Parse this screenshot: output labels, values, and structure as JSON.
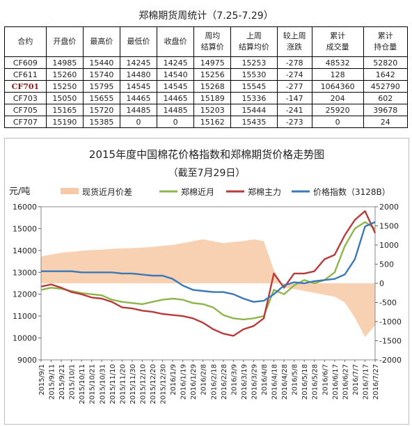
{
  "table": {
    "title": "郑棉期货周统计（7.25-7.29）",
    "headers": [
      [
        "合约"
      ],
      [
        "开盘价"
      ],
      [
        "最高价"
      ],
      [
        "最低价"
      ],
      [
        "收盘价"
      ],
      [
        "周均",
        "结算价"
      ],
      [
        "上周",
        "结算均价"
      ],
      [
        "较上周",
        "涨跌"
      ],
      [
        "累计",
        "成交量"
      ],
      [
        "累计",
        "持仓量"
      ]
    ],
    "rows": [
      {
        "contract": "CF609",
        "open": "14985",
        "high": "15440",
        "low": "14245",
        "close": "14245",
        "settle": "14975",
        "prev_settle": "15253",
        "change": "-278",
        "volume": "48532",
        "oi": "52820"
      },
      {
        "contract": "CF611",
        "open": "15260",
        "high": "15740",
        "low": "14480",
        "close": "14540",
        "settle": "15256",
        "prev_settle": "15530",
        "change": "-274",
        "volume": "128",
        "oi": "1642"
      },
      {
        "contract": "CF701",
        "open": "15250",
        "high": "15795",
        "low": "14545",
        "close": "14545",
        "settle": "15268",
        "prev_settle": "15545",
        "change": "-277",
        "volume": "1064360",
        "oi": "452790",
        "highlight": true
      },
      {
        "contract": "CF703",
        "open": "15050",
        "high": "15655",
        "low": "14465",
        "close": "14465",
        "settle": "15189",
        "prev_settle": "15336",
        "change": "-147",
        "volume": "204",
        "oi": "602"
      },
      {
        "contract": "CF705",
        "open": "15165",
        "high": "15720",
        "low": "14485",
        "close": "14485",
        "settle": "15203",
        "prev_settle": "15444",
        "change": "-241",
        "volume": "25920",
        "oi": "39678"
      },
      {
        "contract": "CF707",
        "open": "15190",
        "high": "15385",
        "low": "0",
        "close": "0",
        "settle": "15162",
        "prev_settle": "15435",
        "change": "-273",
        "volume": "0",
        "oi": "24"
      }
    ]
  },
  "chart_data": {
    "type": "line",
    "title": "2015年度中国棉花价格指数和郑棉期货价格走势图",
    "subtitle": "（截至7月29日）",
    "ylabel": "元/吨",
    "ylim": [
      9000,
      16000
    ],
    "yticks": [
      9000,
      10000,
      11000,
      12000,
      13000,
      14000,
      15000,
      16000
    ],
    "y2lim": [
      -2000,
      2000
    ],
    "y2ticks": [
      -2000,
      -1500,
      -1000,
      -500,
      0,
      500,
      1000,
      1500,
      2000
    ],
    "legend_position": "top",
    "grid": false,
    "categories": [
      "2015/9/1",
      "2015/9/11",
      "2015/9/21",
      "2015/10/1",
      "2015/10/11",
      "2015/10/21",
      "2015/10/31",
      "2015/11/10",
      "2015/11/20",
      "2015/11/30",
      "2015/12/10",
      "2015/12/20",
      "2015/12/30",
      "2016/1/9",
      "2016/1/19",
      "2016/1/29",
      "2016/2/8",
      "2016/2/18",
      "2016/2/28",
      "2016/3/9",
      "2016/3/19",
      "2016/3/29",
      "2016/4/8",
      "2016/4/18",
      "2016/4/28",
      "2016/5/8",
      "2016/5/18",
      "2016/5/28",
      "2016/6/7",
      "2016/6/17",
      "2016/6/27",
      "2016/7/7",
      "2016/7/17",
      "2016/7/27"
    ],
    "series": [
      {
        "name": "现货近月价差",
        "axis": "right",
        "kind": "area",
        "color": "#f7c9a6",
        "values": [
          700,
          750,
          800,
          820,
          850,
          870,
          880,
          900,
          910,
          920,
          930,
          950,
          980,
          1000,
          1050,
          1100,
          1150,
          1100,
          1050,
          1080,
          1100,
          1150,
          1100,
          350,
          -100,
          -150,
          -200,
          -250,
          -300,
          -350,
          -500,
          -900,
          -1400,
          -1100
        ]
      },
      {
        "name": "郑棉近月",
        "axis": "left",
        "color": "#8db54b",
        "values": [
          12200,
          12300,
          12250,
          12150,
          12050,
          12000,
          11950,
          11750,
          11650,
          11600,
          11550,
          11650,
          11750,
          11800,
          11750,
          11600,
          11550,
          11400,
          11050,
          10900,
          10850,
          10900,
          11000,
          12200,
          12000,
          12400,
          12650,
          12500,
          12650,
          13000,
          14200,
          15000,
          15300,
          15000
        ]
      },
      {
        "name": "郑棉主力",
        "axis": "left",
        "color": "#b83a3a",
        "values": [
          12350,
          12450,
          12300,
          12100,
          12000,
          11850,
          11800,
          11650,
          11400,
          11350,
          11250,
          11200,
          11100,
          11050,
          11000,
          10900,
          10700,
          10400,
          10200,
          10100,
          10400,
          10550,
          10900,
          12950,
          12300,
          12950,
          12950,
          13050,
          13600,
          13800,
          14700,
          15400,
          15800,
          14800
        ]
      },
      {
        "name": "价格指数（3128B）",
        "axis": "left",
        "color": "#3a78b8",
        "values": [
          13050,
          13050,
          13050,
          13050,
          13000,
          13000,
          13000,
          13000,
          12950,
          12950,
          12900,
          12850,
          12850,
          12700,
          12400,
          12200,
          12150,
          12100,
          12100,
          12000,
          11800,
          11650,
          11700,
          12000,
          12400,
          12550,
          12500,
          12600,
          12650,
          12700,
          12900,
          13600,
          15100,
          15300
        ]
      }
    ]
  }
}
